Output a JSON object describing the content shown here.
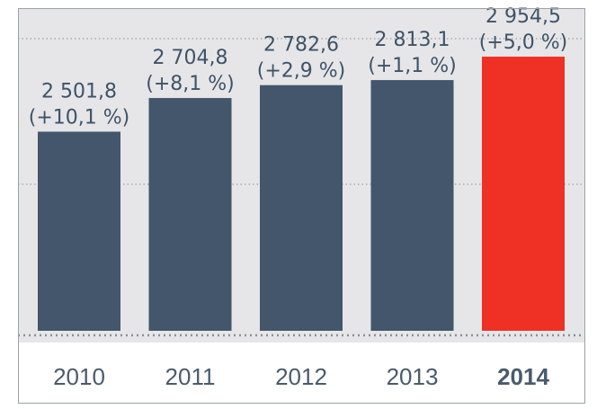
{
  "chart_data": {
    "type": "bar",
    "categories": [
      "2010",
      "2011",
      "2012",
      "2013",
      "2014"
    ],
    "values": [
      2501.8,
      2704.8,
      2782.6,
      2813.1,
      2954.5
    ],
    "value_labels": [
      "2 501,8",
      "2 704,8",
      "2 782,6",
      "2 813,1",
      "2 954,5"
    ],
    "change_labels": [
      "(+10,1 %)",
      "(+8,1 %)",
      "(+2,9 %)",
      "(+1,1 %)",
      "(+5,0 %)"
    ],
    "highlight_index": 4,
    "ylim": [
      1300,
      3150
    ],
    "grid": true,
    "colors": {
      "background": "#e6e6e9",
      "bar": "#43566c",
      "highlight_bar": "#ee3124",
      "grid": "#8a8f95",
      "frame": "#9aa1a8",
      "label": "#3f5366",
      "tick": "#4a5b6b"
    }
  }
}
